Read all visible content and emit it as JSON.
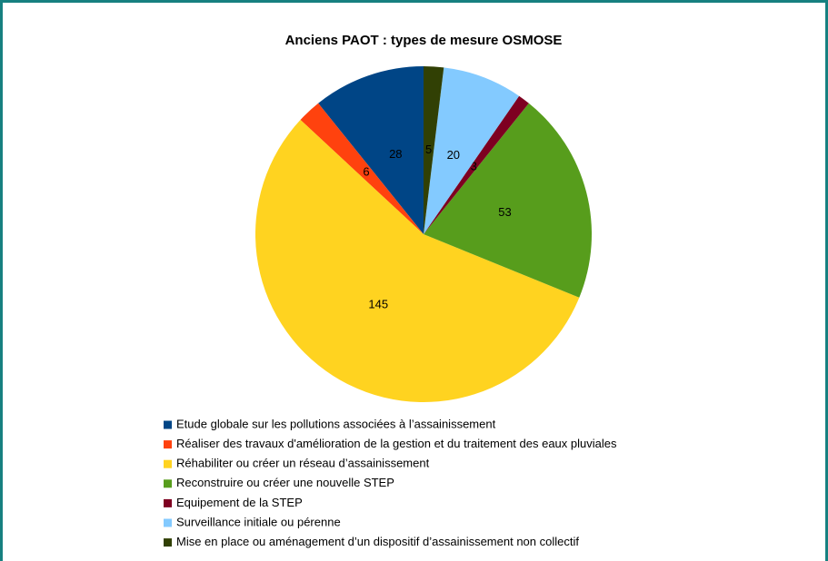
{
  "chart_data": {
    "type": "pie",
    "title": "Anciens PAOT : types de mesure OSMOSE",
    "categories": [
      "Etude globale sur les pollutions associées à l’assainissement",
      "Réaliser des travaux d'amélioration de la gestion  et du traitement des eaux pluviales",
      "Réhabiliter ou créer un réseau d’assainissement",
      "Reconstruire ou créer une nouvelle STEP",
      "Equipement de la STEP",
      "Surveillance initiale ou pérenne",
      "Mise en place ou aménagement d’un dispositif d’assainissement non collectif"
    ],
    "values": [
      28,
      6,
      145,
      53,
      3,
      20,
      5
    ],
    "colors": [
      "#004586",
      "#ff420e",
      "#ffd320",
      "#579d1c",
      "#7e0021",
      "#83caff",
      "#314004"
    ],
    "legend": "bottom"
  }
}
